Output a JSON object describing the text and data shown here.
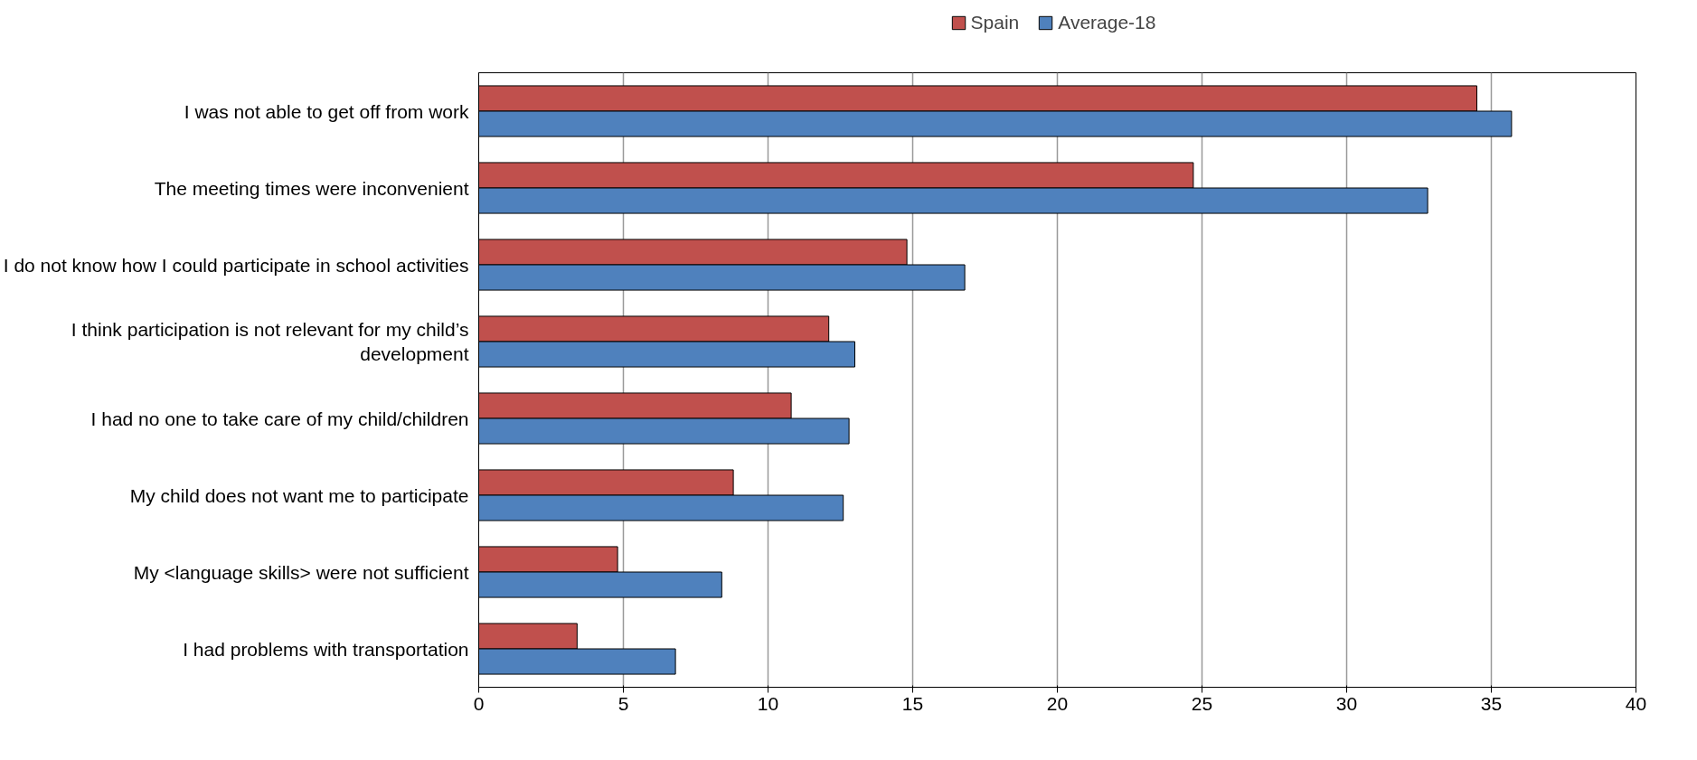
{
  "chart_data": {
    "type": "bar",
    "orientation": "horizontal",
    "categories": [
      "I was not able to get off from work",
      "The meeting times were inconvenient",
      "I do not know how I could participate in school activities",
      "I think participation is not relevant for my child’s development",
      "I had no one to take care of my child/children",
      "My child does not want me to participate",
      "My <language skills> were not sufficient",
      "I had problems with transportation"
    ],
    "series": [
      {
        "name": "Spain",
        "color": "#c0504d",
        "values": [
          34.5,
          24.7,
          14.8,
          12.1,
          10.8,
          8.8,
          4.8,
          3.4
        ]
      },
      {
        "name": "Average-18",
        "color": "#4f81bd",
        "values": [
          35.7,
          32.8,
          16.8,
          13.0,
          12.8,
          12.6,
          8.4,
          6.8
        ]
      }
    ],
    "xlim": [
      0,
      40
    ],
    "xticks": [
      0,
      5,
      10,
      15,
      20,
      25,
      30,
      35,
      40
    ],
    "grid": "x",
    "legend": "top"
  }
}
